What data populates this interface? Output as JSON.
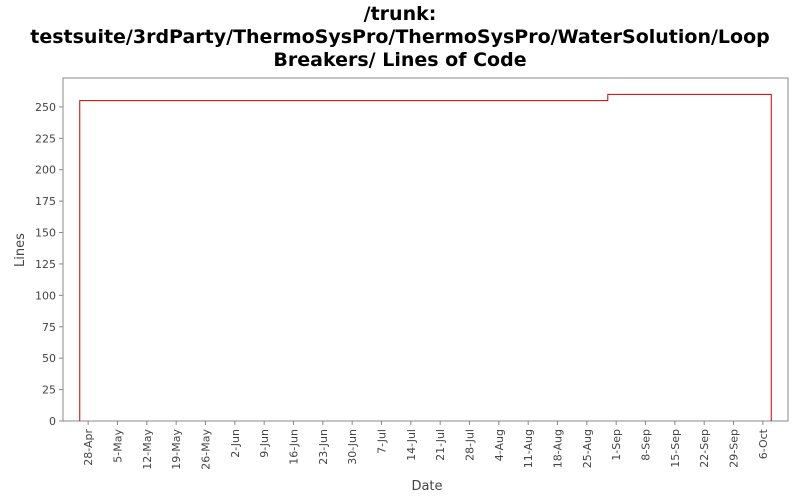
{
  "chart_data": {
    "type": "line",
    "title": [
      "/trunk:",
      "testsuite/3rdParty/ThermoSysPro/ThermoSysPro/WaterSolution/Loop",
      "Breakers/ Lines of Code"
    ],
    "x_label": "Date",
    "y_label": "Lines",
    "series": [
      {
        "name": "Lines of Code",
        "color": "#cc0000",
        "x": [
          "26-Apr",
          "26-Apr",
          "30-Aug",
          "30-Aug",
          "8-Oct",
          "8-Oct"
        ],
        "values": [
          0,
          255,
          255,
          260,
          260,
          0
        ]
      }
    ],
    "xlim": [
      "22-Apr",
      "12-Oct"
    ],
    "xticks": [
      "28-Apr",
      "5-May",
      "12-May",
      "19-May",
      "26-May",
      "2-Jun",
      "9-Jun",
      "16-Jun",
      "23-Jun",
      "30-Jun",
      "7-Jul",
      "14-Jul",
      "21-Jul",
      "28-Jul",
      "4-Aug",
      "11-Aug",
      "18-Aug",
      "25-Aug",
      "1-Sep",
      "8-Sep",
      "15-Sep",
      "22-Sep",
      "29-Sep",
      "6-Oct"
    ],
    "ylim": [
      0,
      273
    ],
    "yticks": [
      0,
      25,
      50,
      75,
      100,
      125,
      150,
      175,
      200,
      225,
      250
    ],
    "grid": false
  }
}
